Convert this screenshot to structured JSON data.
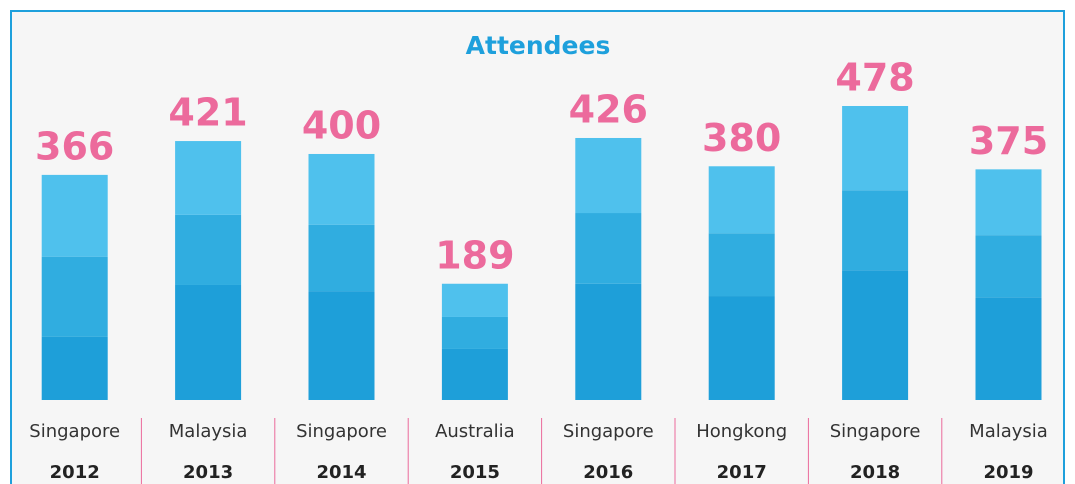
{
  "chart_data": {
    "type": "stacked_bar",
    "title": "Attendees",
    "categories": [
      "Singapore",
      "Malaysia",
      "Singapore",
      "Australia",
      "Singapore",
      "Hongkong",
      "Singapore",
      "Malaysia"
    ],
    "years": [
      "2012",
      "2013",
      "2014",
      "2015",
      "2016",
      "2017",
      "2018",
      "2019"
    ],
    "series": [
      {
        "color": "#1e9fd9",
        "values": [
          103,
          187,
          177,
          83,
          189,
          169,
          211,
          167
        ]
      },
      {
        "color": "#30ade0",
        "values": [
          130,
          114,
          108,
          52,
          115,
          102,
          130,
          101
        ]
      },
      {
        "color": "#4fc1ed",
        "values": [
          133,
          120,
          115,
          54,
          122,
          109,
          137,
          107
        ]
      }
    ],
    "totals": [
      366,
      421,
      400,
      189,
      426,
      380,
      478,
      375
    ]
  }
}
